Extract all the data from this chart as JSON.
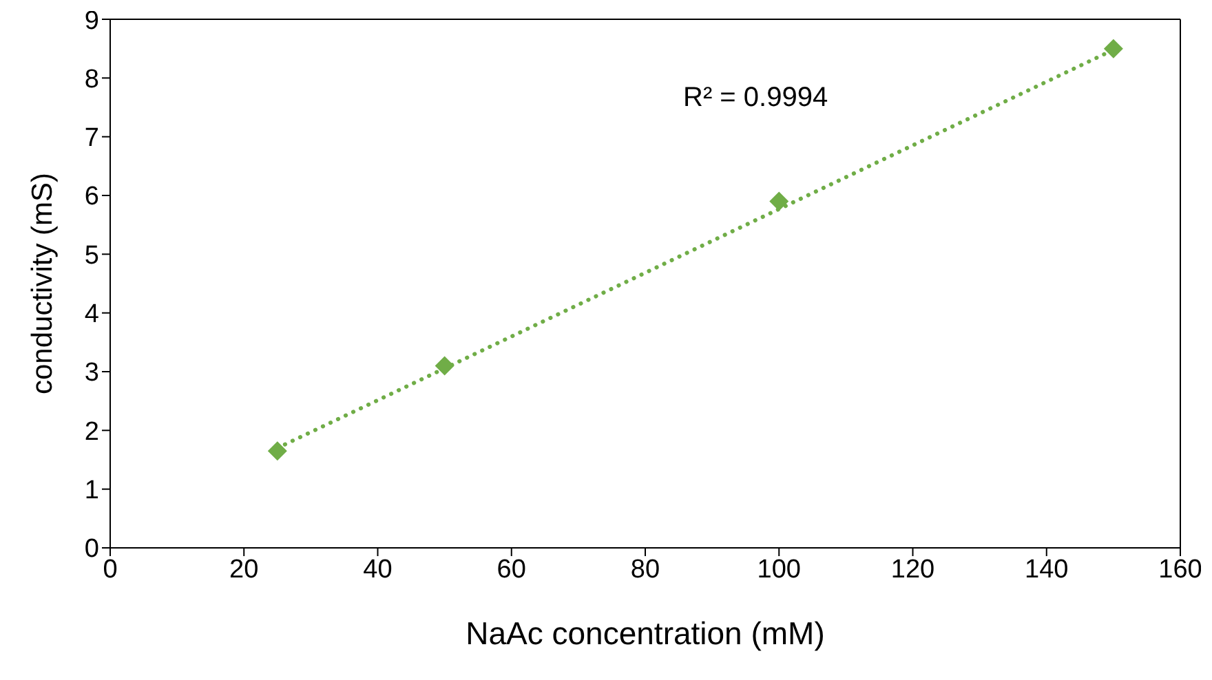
{
  "chart_data": {
    "type": "scatter",
    "xlabel": "NaAc concentration (mM)",
    "ylabel": "conductivity (mS)",
    "x": [
      25,
      50,
      100,
      150
    ],
    "series": [
      {
        "color": "#70ad47",
        "values": [
          1.65,
          3.1,
          5.9,
          8.5
        ],
        "marker": "diamond"
      },
      {
        "type": "line",
        "color": "#70ad47",
        "x": [
          25,
          150
        ],
        "values": [
          1.7,
          8.48
        ],
        "line_style": "dotted",
        "marker": "none"
      }
    ],
    "xlim": [
      0,
      160
    ],
    "xticks": [
      0,
      20,
      40,
      60,
      80,
      100,
      120,
      140,
      160
    ],
    "ylim": [
      0,
      9
    ],
    "yticks": [
      0,
      1,
      2,
      3,
      4,
      5,
      6,
      7,
      8,
      9
    ],
    "grid": false,
    "annotations": [
      "R² = 0.9994"
    ]
  }
}
